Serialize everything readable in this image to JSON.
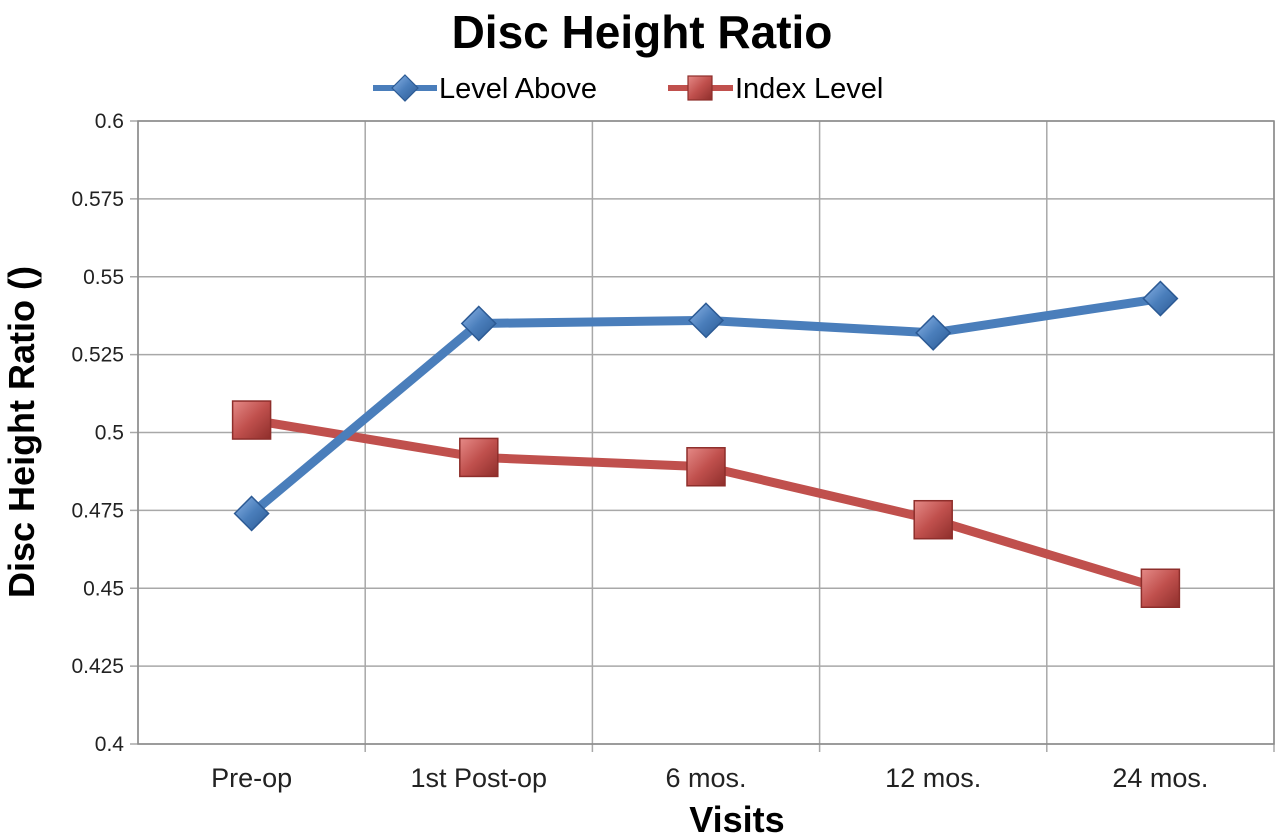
{
  "chart_data": {
    "type": "line",
    "title": "Disc Height Ratio",
    "xlabel": "Visits",
    "ylabel": "Disc Height Ratio ()",
    "categories": [
      "Pre-op",
      "1st Post-op",
      "6 mos.",
      "12 mos.",
      "24 mos."
    ],
    "ylim": [
      0.4,
      0.6
    ],
    "yticks": [
      "0.4",
      "0.425",
      "0.45",
      "0.475",
      "0.5",
      "0.525",
      "0.55",
      "0.575",
      "0.6"
    ],
    "grid": true,
    "legend_position": "top",
    "series": [
      {
        "name": "Level Above",
        "values": [
          0.474,
          0.535,
          0.536,
          0.532,
          0.543
        ],
        "color": "#4a7ebb",
        "marker": "diamond"
      },
      {
        "name": "Index Level",
        "values": [
          0.504,
          0.492,
          0.489,
          0.472,
          0.45
        ],
        "color": "#c0504d",
        "marker": "square"
      }
    ]
  }
}
